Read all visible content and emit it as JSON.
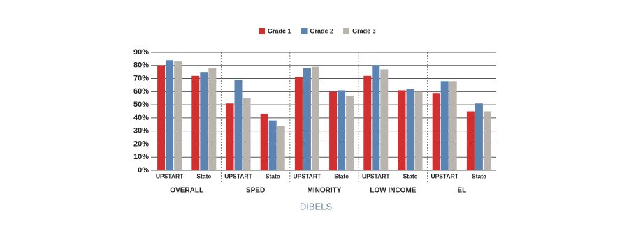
{
  "chart_data": {
    "type": "bar",
    "xlabel": "DIBELS",
    "categories": [
      "UPSTART",
      "State",
      "UPSTART",
      "State",
      "UPSTART",
      "State",
      "UPSTART",
      "State",
      "UPSTART",
      "State"
    ],
    "groups": [
      "OVERALL",
      "SPED",
      "MINORITY",
      "LOW INCOME",
      "EL"
    ],
    "series": [
      {
        "name": "Grade 1",
        "color": "#d32f2f",
        "values": [
          80,
          72,
          51,
          43,
          71,
          60,
          72,
          61,
          59,
          45
        ]
      },
      {
        "name": "Grade 2",
        "color": "#5b84b3",
        "values": [
          84,
          75,
          69,
          38,
          78,
          61,
          80,
          62,
          68,
          51
        ]
      },
      {
        "name": "Grade 3",
        "color": "#b9b4ad",
        "values": [
          83,
          78,
          55,
          34,
          79,
          57,
          77,
          60,
          68,
          45
        ]
      }
    ],
    "ylim": [
      0,
      90
    ],
    "yticks": [
      {
        "value": 0,
        "label": "0%"
      },
      {
        "value": 10,
        "label": "10%"
      },
      {
        "value": 20,
        "label": "20%"
      },
      {
        "value": 30,
        "label": "30%"
      },
      {
        "value": 40,
        "label": "40%"
      },
      {
        "value": 50,
        "label": "50%"
      },
      {
        "value": 60,
        "label": "60%"
      },
      {
        "value": 70,
        "label": "70%"
      },
      {
        "value": 80,
        "label": "80%"
      },
      {
        "value": 90,
        "label": "90%"
      }
    ],
    "grid": true
  }
}
